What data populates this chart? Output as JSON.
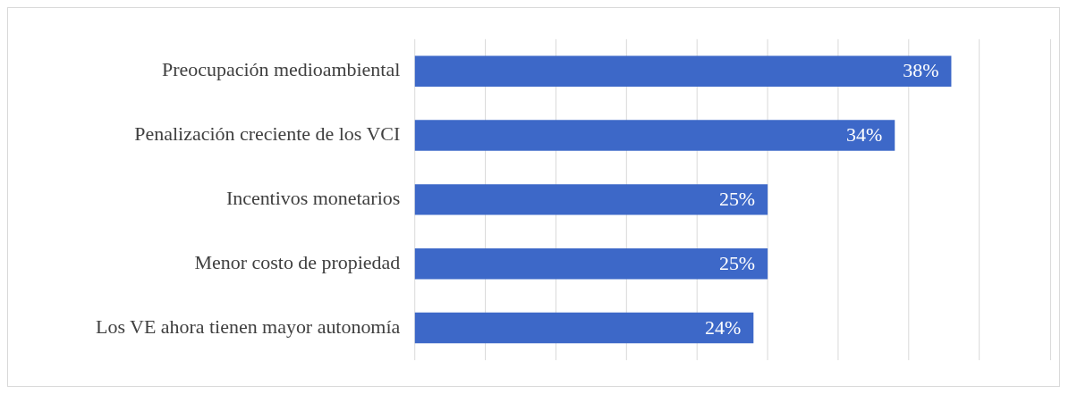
{
  "chart_data": {
    "type": "bar",
    "orientation": "horizontal",
    "categories": [
      "Preocupación medioambiental",
      "Penalización creciente de los VCI",
      "Incentivos monetarios",
      "Menor costo de propiedad",
      "Los VE ahora tienen mayor autonomía"
    ],
    "values": [
      38,
      34,
      25,
      25,
      24
    ],
    "value_labels": [
      "38%",
      "34%",
      "25%",
      "25%",
      "24%"
    ],
    "color": "#3d68c8",
    "xlim": [
      0,
      45
    ],
    "xticks": [
      0,
      5,
      10,
      15,
      20,
      25,
      30,
      35,
      40,
      45
    ],
    "grid": "x",
    "tick_labels": "y"
  }
}
